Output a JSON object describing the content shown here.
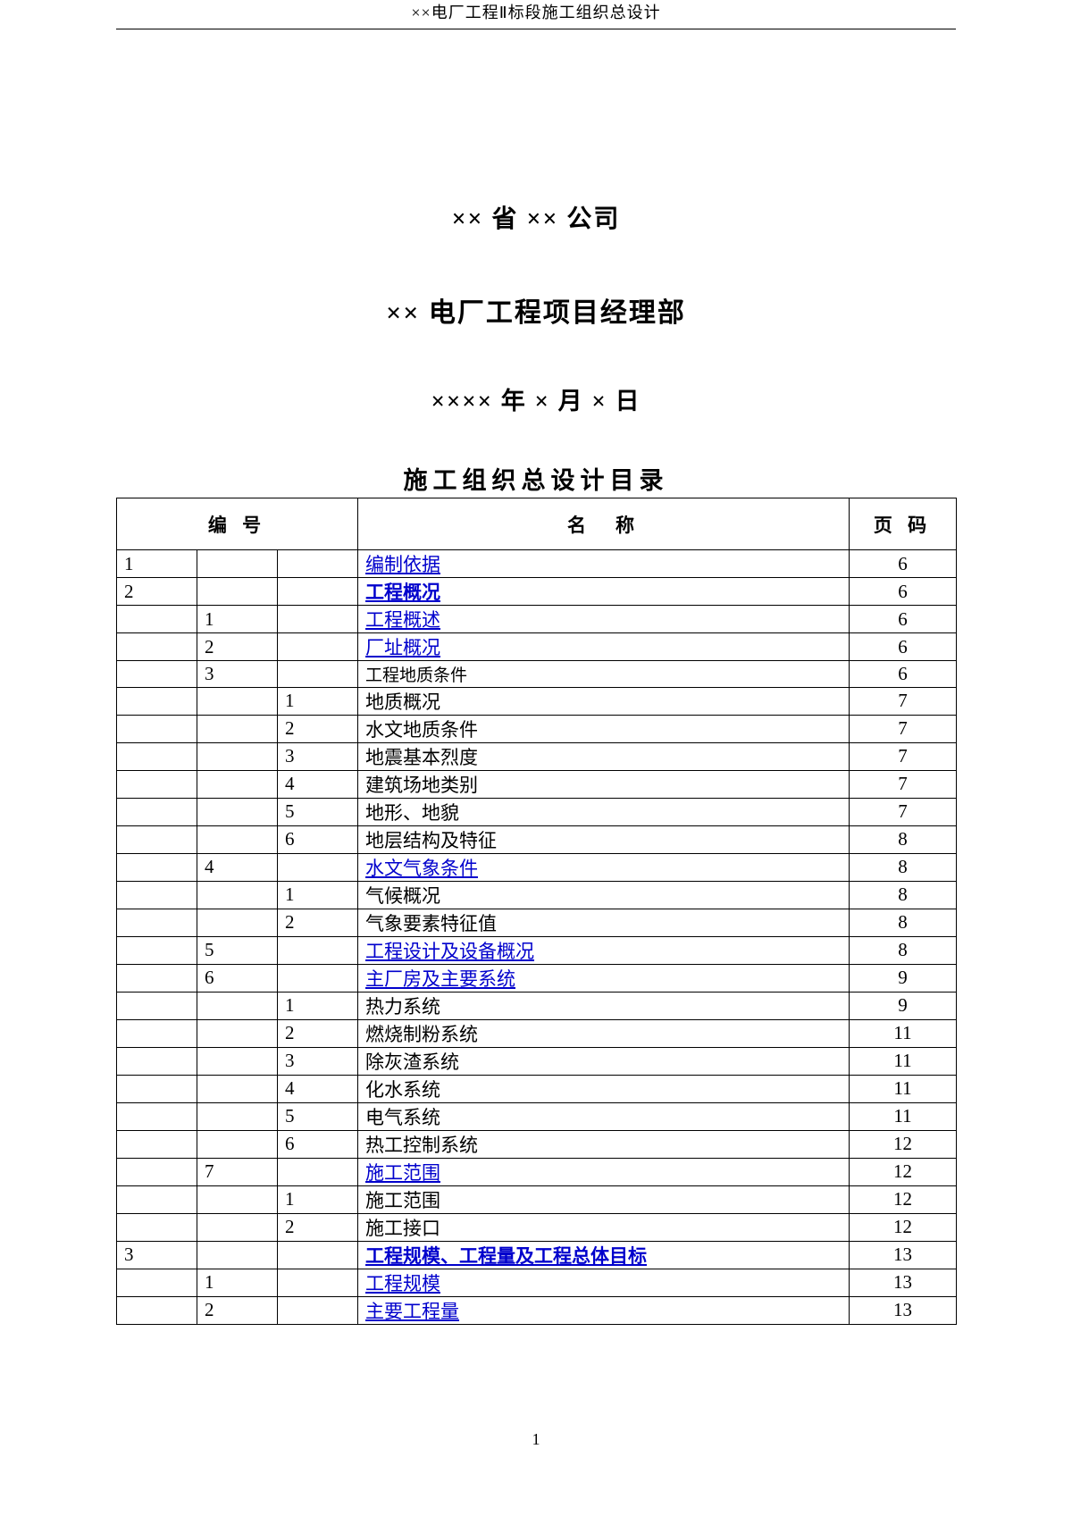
{
  "header": "××电厂工程Ⅱ标段施工组织总设计",
  "title1": "×× 省  ×× 公司",
  "title2": "×× 电厂工程项目经理部",
  "title3": "×××× 年  × 月  × 日",
  "tocTitle": "施工组织总设计目录",
  "columns": {
    "num": "编 号",
    "name": "名　称",
    "page": "页 码"
  },
  "rows": [
    {
      "n1": "1",
      "n2": "",
      "n3": "",
      "name": "编制依据",
      "page": "6",
      "style": "link"
    },
    {
      "n1": "2",
      "n2": "",
      "n3": "",
      "name": "工程概况",
      "page": "6",
      "style": "linkbold"
    },
    {
      "n1": "",
      "n2": "1",
      "n3": "",
      "name": "工程概述",
      "page": "6",
      "style": "link"
    },
    {
      "n1": "",
      "n2": "2",
      "n3": "",
      "name": "厂址概况",
      "page": "6",
      "style": "link"
    },
    {
      "n1": "",
      "n2": "3",
      "n3": "",
      "name": "工程地质条件",
      "page": "6",
      "style": "plainsmall"
    },
    {
      "n1": "",
      "n2": "",
      "n3": "1",
      "name": "地质概况",
      "page": "7",
      "style": "plain"
    },
    {
      "n1": "",
      "n2": "",
      "n3": "2",
      "name": "水文地质条件",
      "page": "7",
      "style": "plain"
    },
    {
      "n1": "",
      "n2": "",
      "n3": "3",
      "name": "地震基本烈度",
      "page": "7",
      "style": "plain"
    },
    {
      "n1": "",
      "n2": "",
      "n3": "4",
      "name": "建筑场地类别",
      "page": "7",
      "style": "plain"
    },
    {
      "n1": "",
      "n2": "",
      "n3": "5",
      "name": "地形、地貌",
      "page": "7",
      "style": "plain"
    },
    {
      "n1": "",
      "n2": "",
      "n3": "6",
      "name": "地层结构及特征",
      "page": "8",
      "style": "plain"
    },
    {
      "n1": "",
      "n2": "4",
      "n3": "",
      "name": "水文气象条件",
      "page": "8",
      "style": "link"
    },
    {
      "n1": "",
      "n2": "",
      "n3": "1",
      "name": "气候概况",
      "page": "8",
      "style": "plain"
    },
    {
      "n1": "",
      "n2": "",
      "n3": "2",
      "name": "气象要素特征值",
      "page": "8",
      "style": "plain"
    },
    {
      "n1": "",
      "n2": "5",
      "n3": "",
      "name": "工程设计及设备概况",
      "page": "8",
      "style": "link"
    },
    {
      "n1": "",
      "n2": "6",
      "n3": "",
      "name": "主厂房及主要系统",
      "page": "9",
      "style": "link"
    },
    {
      "n1": "",
      "n2": "",
      "n3": "1",
      "name": "热力系统",
      "page": "9",
      "style": "plain"
    },
    {
      "n1": "",
      "n2": "",
      "n3": "2",
      "name": "燃烧制粉系统",
      "page": "11",
      "style": "plain"
    },
    {
      "n1": "",
      "n2": "",
      "n3": "3",
      "name": "除灰渣系统",
      "page": "11",
      "style": "plain"
    },
    {
      "n1": "",
      "n2": "",
      "n3": "4",
      "name": "化水系统",
      "page": "11",
      "style": "plain"
    },
    {
      "n1": "",
      "n2": "",
      "n3": "5",
      "name": "电气系统",
      "page": "11",
      "style": "plain"
    },
    {
      "n1": "",
      "n2": "",
      "n3": "6",
      "name": "热工控制系统",
      "page": "12",
      "style": "plain"
    },
    {
      "n1": "",
      "n2": "7",
      "n3": "",
      "name": "施工范围",
      "page": "12",
      "style": "link"
    },
    {
      "n1": "",
      "n2": "",
      "n3": "1",
      "name": "施工范围",
      "page": "12",
      "style": "plain"
    },
    {
      "n1": "",
      "n2": "",
      "n3": "2",
      "name": "施工接口",
      "page": "12",
      "style": "plain"
    },
    {
      "n1": "3",
      "n2": "",
      "n3": "",
      "name": "工程规模、工程量及工程总体目标",
      "page": "13",
      "style": "linkbold"
    },
    {
      "n1": "",
      "n2": "1",
      "n3": "",
      "name": "工程规模",
      "page": "13",
      "style": "link"
    },
    {
      "n1": "",
      "n2": "2",
      "n3": "",
      "name": "主要工程量",
      "page": "13",
      "style": "link"
    }
  ],
  "footer": "1"
}
